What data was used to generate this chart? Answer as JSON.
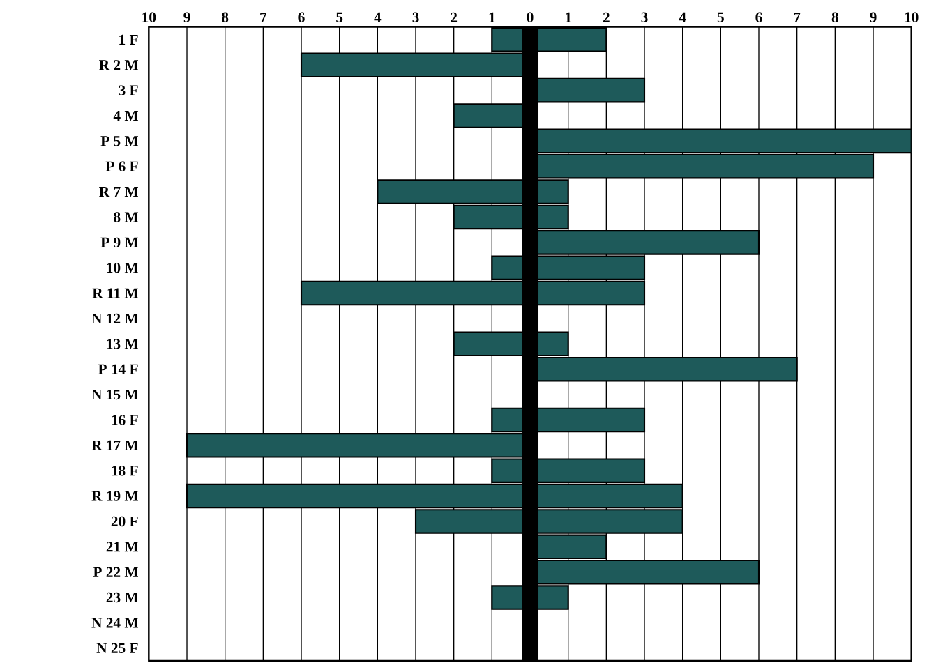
{
  "chart_data": {
    "type": "bar",
    "orientation": "horizontal",
    "categories": [
      "1 F",
      "R 2 M",
      "3 F",
      "4 M",
      "P 5 M",
      "P 6 F",
      "R 7 M",
      "8 M",
      "P 9 M",
      "10 M",
      "R 11 M",
      "N 12 M",
      "13 M",
      "P 14 F",
      "N 15 M",
      "16 F",
      "R 17 M",
      "18 F",
      "R 19 M",
      "20 F",
      "21 M",
      "P 22 M",
      "23 M",
      "N 24 M",
      "N 25 F"
    ],
    "series": [
      {
        "color": "#1e5a5a",
        "values": [
          -1,
          -6,
          null,
          -2,
          null,
          null,
          -4,
          -2,
          null,
          -1,
          -6,
          null,
          -2,
          null,
          null,
          -1,
          -9,
          -1,
          -9,
          -3,
          null,
          null,
          -1,
          null,
          null
        ]
      },
      {
        "color": "#1e5a5a",
        "values": [
          2,
          null,
          3,
          null,
          10,
          9,
          1,
          1,
          6,
          3,
          3,
          null,
          1,
          7,
          null,
          3,
          null,
          3,
          4,
          4,
          2,
          6,
          1,
          null,
          null
        ]
      }
    ],
    "xlim": [
      -10,
      10
    ],
    "xticks": [
      {
        "value": -10,
        "label": "10"
      },
      {
        "value": -9,
        "label": "9"
      },
      {
        "value": -8,
        "label": "8"
      },
      {
        "value": -7,
        "label": "7"
      },
      {
        "value": -6,
        "label": "6"
      },
      {
        "value": -5,
        "label": "5"
      },
      {
        "value": -4,
        "label": "4"
      },
      {
        "value": -3,
        "label": "3"
      },
      {
        "value": -2,
        "label": "2"
      },
      {
        "value": -1,
        "label": "1"
      },
      0,
      1,
      2,
      3,
      4,
      5,
      6,
      7,
      8,
      9,
      10
    ],
    "grid": "x",
    "ref_lines": [
      {
        "axis": "x",
        "value": 0,
        "color": "#000000"
      }
    ]
  }
}
